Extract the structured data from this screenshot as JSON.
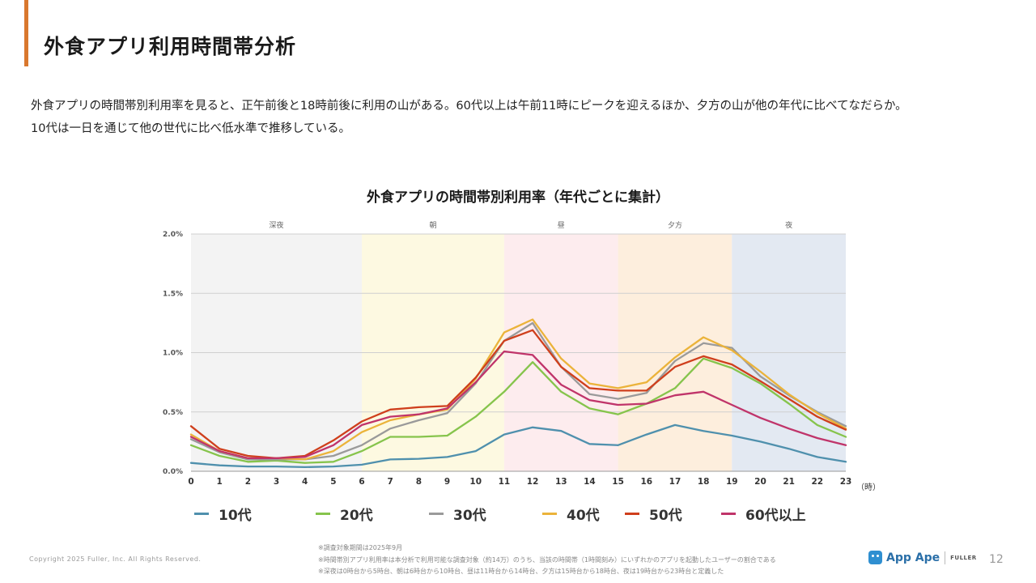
{
  "header": {
    "title": "外食アプリ利用時間帯分析",
    "accent": "#d9782e"
  },
  "lead": {
    "line1": "外食アプリの時間帯別利用率を見ると、正午前後と18時前後に利用の山がある。60代以上は午前11時にピークを迎えるほか、夕方の山が他の年代に比べてなだらか。",
    "line2": "10代は一日を通じて他の世代に比べ低水準で推移している。"
  },
  "chart_data": {
    "type": "line",
    "title": "外食アプリの時間帯別利用率（年代ごとに集計）",
    "x": [
      0,
      1,
      2,
      3,
      4,
      5,
      6,
      7,
      8,
      9,
      10,
      11,
      12,
      13,
      14,
      15,
      16,
      17,
      18,
      19,
      20,
      21,
      22,
      23
    ],
    "x_unit": "（時）",
    "ylim": [
      0,
      2.0
    ],
    "y_ticks": [
      "0.0%",
      "0.5%",
      "1.0%",
      "1.5%",
      "2.0%"
    ],
    "y_tick_values": [
      0,
      0.5,
      1.0,
      1.5,
      2.0
    ],
    "grid": true,
    "legend_position": "bottom",
    "bands": [
      {
        "label": "深夜",
        "from": 0,
        "to": 6,
        "color": "#f3f3f3"
      },
      {
        "label": "朝",
        "from": 6,
        "to": 11,
        "color": "#fdf9e1"
      },
      {
        "label": "昼",
        "from": 11,
        "to": 15,
        "color": "#fdecee"
      },
      {
        "label": "夕方",
        "from": 15,
        "to": 19,
        "color": "#fdeedd"
      },
      {
        "label": "夜",
        "from": 19,
        "to": 23,
        "color": "#e3e9f2"
      }
    ],
    "series": [
      {
        "name": "10代",
        "color": "#4f90ad",
        "values": [
          0.07,
          0.05,
          0.04,
          0.04,
          0.035,
          0.04,
          0.055,
          0.1,
          0.105,
          0.12,
          0.17,
          0.31,
          0.37,
          0.34,
          0.23,
          0.22,
          0.31,
          0.39,
          0.34,
          0.3,
          0.25,
          0.19,
          0.12,
          0.08
        ]
      },
      {
        "name": "20代",
        "color": "#86c44c",
        "values": [
          0.22,
          0.13,
          0.08,
          0.09,
          0.07,
          0.08,
          0.17,
          0.29,
          0.29,
          0.3,
          0.46,
          0.67,
          0.92,
          0.67,
          0.53,
          0.48,
          0.57,
          0.7,
          0.95,
          0.87,
          0.74,
          0.57,
          0.39,
          0.29
        ]
      },
      {
        "name": "30代",
        "color": "#9a9a9a",
        "values": [
          0.27,
          0.16,
          0.1,
          0.1,
          0.1,
          0.13,
          0.22,
          0.36,
          0.43,
          0.49,
          0.74,
          1.1,
          1.25,
          0.88,
          0.65,
          0.61,
          0.66,
          0.93,
          1.08,
          1.04,
          0.8,
          0.64,
          0.5,
          0.38
        ]
      },
      {
        "name": "40代",
        "color": "#ebb33a",
        "values": [
          0.31,
          0.17,
          0.11,
          0.11,
          0.1,
          0.17,
          0.33,
          0.43,
          0.48,
          0.52,
          0.78,
          1.17,
          1.28,
          0.95,
          0.74,
          0.7,
          0.75,
          0.96,
          1.13,
          1.02,
          0.84,
          0.65,
          0.49,
          0.36
        ]
      },
      {
        "name": "50代",
        "color": "#cf3f1c",
        "values": [
          0.38,
          0.19,
          0.13,
          0.11,
          0.13,
          0.26,
          0.42,
          0.52,
          0.54,
          0.55,
          0.79,
          1.1,
          1.19,
          0.88,
          0.7,
          0.68,
          0.68,
          0.88,
          0.97,
          0.9,
          0.76,
          0.61,
          0.46,
          0.35
        ]
      },
      {
        "name": "60代以上",
        "color": "#c0346a",
        "values": [
          0.29,
          0.17,
          0.11,
          0.11,
          0.12,
          0.22,
          0.39,
          0.46,
          0.48,
          0.53,
          0.75,
          1.01,
          0.98,
          0.73,
          0.6,
          0.56,
          0.57,
          0.64,
          0.67,
          0.56,
          0.45,
          0.36,
          0.28,
          0.22
        ]
      }
    ]
  },
  "footer": {
    "copyright": "Copyright 2025 Fuller, Inc. All Rights Reserved.",
    "note1": "※調査対象期間は2025年9月",
    "note2": "※時間帯別アプリ利用率は本分析で利用可能な調査対象（約14万）のうち、当該の時間帯（1時間刻み）にいずれかのアプリを起動したユーザーの割合である",
    "note3": "※深夜は0時台から5時台、朝は6時台から10時台、昼は11時台から14時台、夕方は15時台から18時台、夜は19時台から23時台と定義した",
    "brand_name": "App Ape",
    "brand_sub": "FULLER",
    "page_number": "12"
  }
}
